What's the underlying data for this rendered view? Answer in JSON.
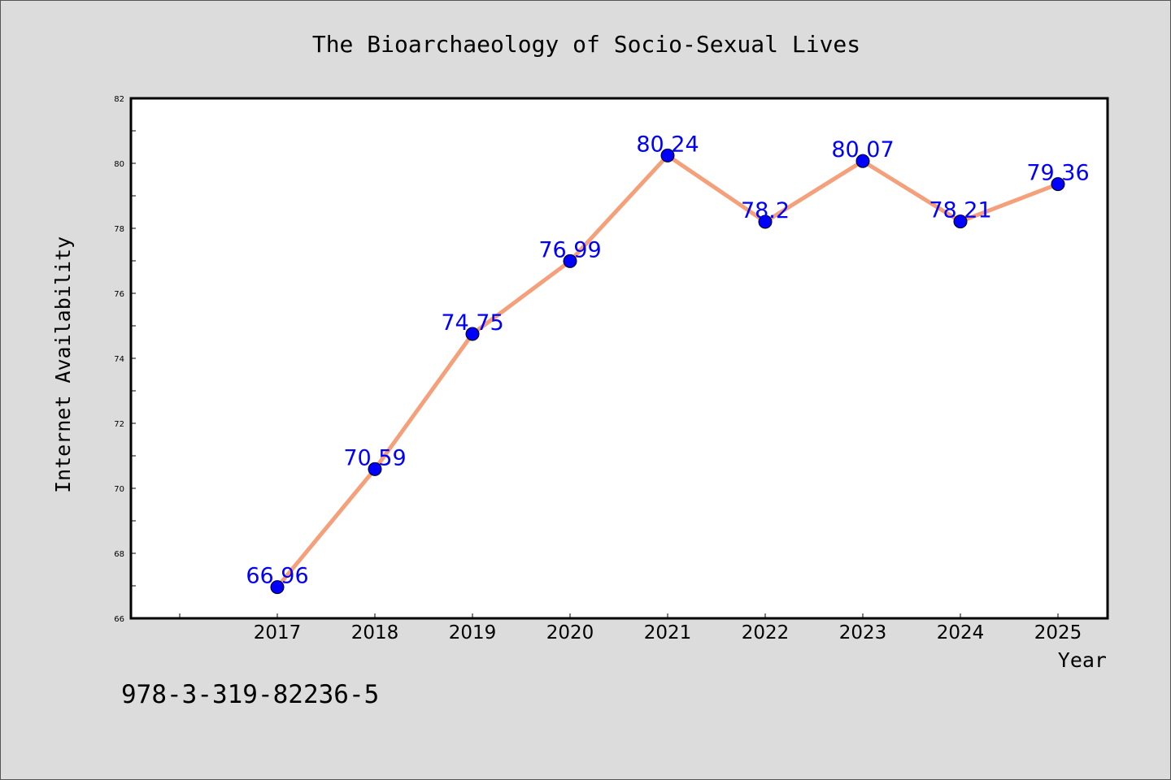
{
  "chart_data": {
    "type": "line",
    "title": "The Bioarchaeology of Socio-Sexual Lives",
    "xlabel": "Year",
    "ylabel": "Internet Availability",
    "x": [
      "2017",
      "2018",
      "2019",
      "2020",
      "2021",
      "2022",
      "2023",
      "2024",
      "2025"
    ],
    "series": [
      {
        "values": [
          66.96,
          70.59,
          74.75,
          76.99,
          80.24,
          78.2,
          80.07,
          78.21,
          79.36
        ],
        "labels": [
          "66.96",
          "70.59",
          "74.75",
          "76.99",
          "80.24",
          "78.2",
          "80.07",
          "78.21",
          "79.36"
        ]
      }
    ],
    "ylim": [
      66,
      82
    ],
    "yticks": [
      "66",
      "68",
      "70",
      "72",
      "74",
      "76",
      "78",
      "80",
      "82"
    ],
    "grid": false,
    "line_color": "#f4a07a",
    "marker_color": "#0000ff",
    "label_color": "#0000ff"
  },
  "footer": {
    "isbn": "978-3-319-82236-5"
  },
  "colors": {
    "background": "#dcdcdc",
    "plot_background": "#ffffff"
  }
}
